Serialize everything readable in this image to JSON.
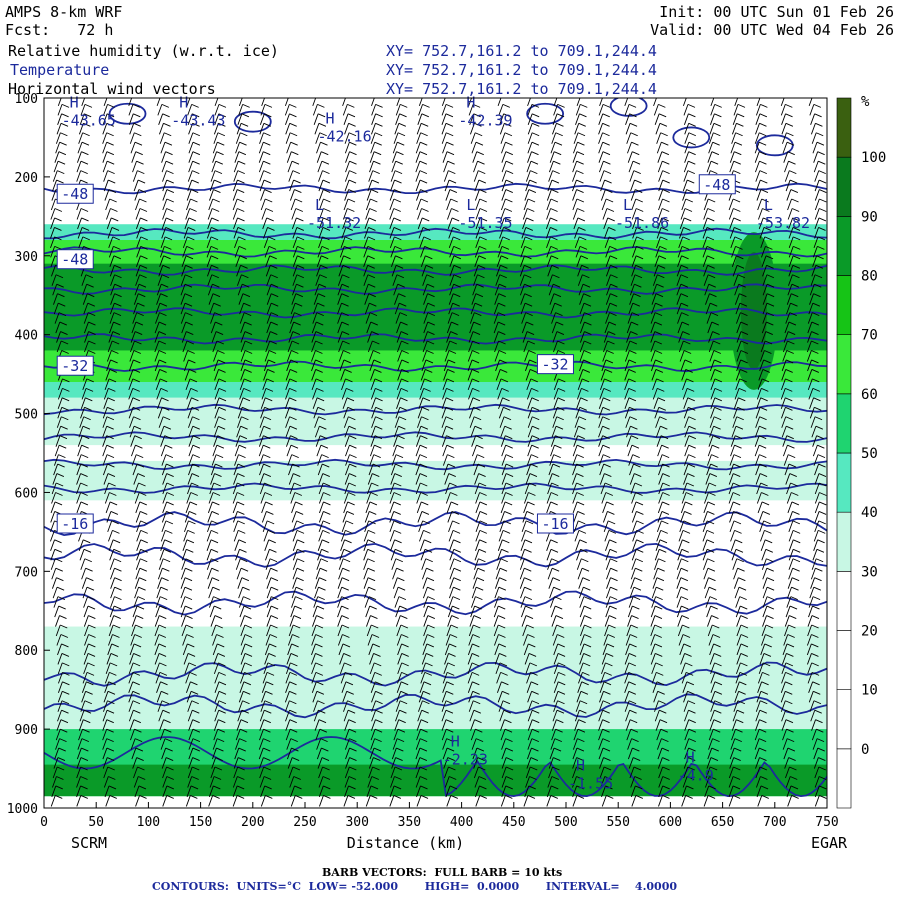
{
  "header": {
    "model": "AMPS 8-km WRF",
    "forecast": "Fcst:   72 h",
    "init": "Init: 00 UTC Sun 01 Feb 26",
    "valid": "Valid: 00 UTC Wed 04 Feb 26",
    "fields": [
      {
        "name": "Relative humidity (w.r.t. ice)",
        "xy": "XY= 752.7,161.2 to 709.1,244.4"
      },
      {
        "name": "Temperature",
        "xy": "XY= 752.7,161.2 to 709.1,244.4"
      },
      {
        "name": "Horizontal wind vectors",
        "xy": "XY= 752.7,161.2 to 709.1,244.4"
      }
    ]
  },
  "footer": {
    "barb": "BARB VECTORS:  FULL BARB = 10 kts",
    "contours": "CONTOURS:  UNITS=°C  LOW= -52.000       HIGH=  0.0000       INTERVAL=    4.0000"
  },
  "colors": {
    "temperature_contour": "#1c2a9c",
    "rh_scale": [
      "#ffffff",
      "#ffffff",
      "#ffffff",
      "#ffffff",
      "#c8f7e4",
      "#56e8c0",
      "#1fd470",
      "#3ae83a",
      "#16c416",
      "#0a9a28",
      "#0a7a1e",
      "#3a6010"
    ]
  },
  "chart_data": {
    "type": "heatmap",
    "title": "Relative humidity (w.r.t. ice)",
    "xlabel": "Distance (km)",
    "ylabel": "",
    "x_ticks": [
      0,
      50,
      100,
      150,
      200,
      250,
      300,
      350,
      400,
      450,
      500,
      550,
      600,
      650,
      700,
      750
    ],
    "y_ticks": [
      100,
      200,
      300,
      400,
      500,
      600,
      700,
      800,
      900,
      1000
    ],
    "xlim": [
      0,
      750
    ],
    "ylim": [
      1000,
      100
    ],
    "x_endpoints": {
      "left": "SCRM",
      "right": "EGAR"
    },
    "colorbar": {
      "unit": "%",
      "ticks": [
        100,
        90,
        80,
        70,
        60,
        50,
        40,
        30,
        20,
        10,
        0
      ],
      "levels": [
        -10,
        0,
        10,
        20,
        30,
        40,
        50,
        60,
        70,
        80,
        90,
        100,
        110
      ]
    },
    "rh_layers": [
      {
        "top": 260,
        "bottom": 480,
        "value": 45
      },
      {
        "top": 280,
        "bottom": 460,
        "value": 65
      },
      {
        "top": 310,
        "bottom": 420,
        "value": 80
      },
      {
        "top": 480,
        "bottom": 540,
        "value": 35
      },
      {
        "top": 560,
        "bottom": 610,
        "value": 35
      },
      {
        "top": 770,
        "bottom": 985,
        "value": 35
      },
      {
        "top": 900,
        "bottom": 985,
        "value": 55
      },
      {
        "top": 945,
        "bottom": 985,
        "value": 80
      }
    ],
    "rh_cores": [
      {
        "x": 680,
        "top": 270,
        "bottom": 470,
        "value": 100
      }
    ],
    "temperature_labels": [
      {
        "x": 5,
        "p": 222,
        "text": "-48"
      },
      {
        "x": 5,
        "p": 305,
        "text": "-48"
      },
      {
        "x": 5,
        "p": 440,
        "text": "-32"
      },
      {
        "x": 5,
        "p": 640,
        "text": "-16"
      },
      {
        "x": 465,
        "p": 438,
        "text": "-32"
      },
      {
        "x": 465,
        "p": 640,
        "text": "-16"
      },
      {
        "x": 620,
        "p": 210,
        "text": "-48"
      }
    ],
    "extrema": [
      {
        "kind": "H",
        "x": 15,
        "p": 130,
        "value": "-43.65"
      },
      {
        "kind": "H",
        "x": 120,
        "p": 130,
        "value": "-43.43"
      },
      {
        "kind": "H",
        "x": 260,
        "p": 150,
        "value": "-42.16"
      },
      {
        "kind": "H",
        "x": 395,
        "p": 130,
        "value": "-42.39"
      },
      {
        "kind": "L",
        "x": 250,
        "p": 260,
        "value": "-51.32"
      },
      {
        "kind": "L",
        "x": 395,
        "p": 260,
        "value": "-51.35"
      },
      {
        "kind": "L",
        "x": 545,
        "p": 260,
        "value": "-51.86"
      },
      {
        "kind": "L",
        "x": 680,
        "p": 260,
        "value": "-53.82"
      },
      {
        "kind": "H",
        "x": 380,
        "p": 940,
        "value": "-2.23"
      },
      {
        "kind": "H",
        "x": 500,
        "p": 970,
        "value": "-1.55"
      },
      {
        "kind": "H",
        "x": 605,
        "p": 960,
        "value": "-4.9"
      }
    ],
    "barb_x_km": [
      10,
      35,
      60,
      85,
      110,
      135,
      160,
      185,
      210,
      235,
      260,
      285,
      310,
      335,
      360,
      385,
      410,
      435,
      460,
      485,
      510,
      535,
      560,
      585,
      610,
      635,
      660,
      685,
      710,
      735
    ]
  }
}
